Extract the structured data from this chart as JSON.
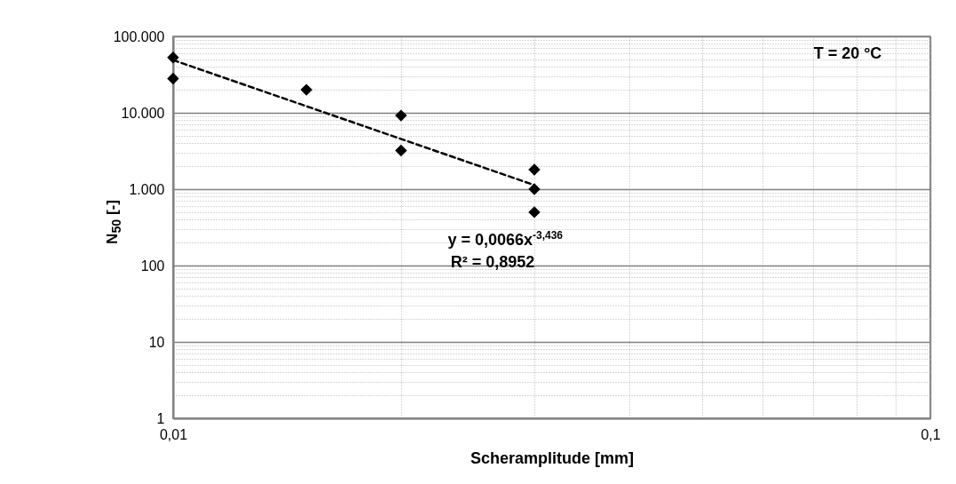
{
  "chart_data": {
    "type": "scatter",
    "xlabel": "Scheramplitude [mm]",
    "ylabel": "N$_{50}$ [-]",
    "log": "xy",
    "grid": true,
    "xlim": [
      0.01,
      0.1
    ],
    "xticks": [
      {
        "value": 0.01,
        "label": "0,01"
      },
      {
        "value": 0.1,
        "label": "0,1"
      }
    ],
    "ylim": [
      1,
      100000
    ],
    "yticks": [
      1,
      10,
      100,
      {
        "value": 1000,
        "label": "1.000"
      },
      {
        "value": 10000,
        "label": "10.000"
      },
      {
        "value": 100000,
        "label": "100.000"
      }
    ],
    "series": [
      {
        "color": "#000000",
        "marker": "diamond",
        "x": [
          0.01,
          0.01,
          0.015,
          0.02,
          0.02,
          0.03,
          0.03,
          0.03
        ],
        "values": [
          53000,
          28000,
          20000,
          9200,
          3200,
          1800,
          1000,
          500
        ]
      },
      {
        "type": "line",
        "color": "#000000",
        "marker": "none",
        "line_style": "dashed",
        "x": [
          0.01,
          0.03
        ],
        "values": [
          49000,
          1130
        ]
      }
    ],
    "annotations": [
      "T = 20 °C",
      "y = 0,0066x$^{-3,436}$",
      "R² = 0,8952"
    ]
  }
}
